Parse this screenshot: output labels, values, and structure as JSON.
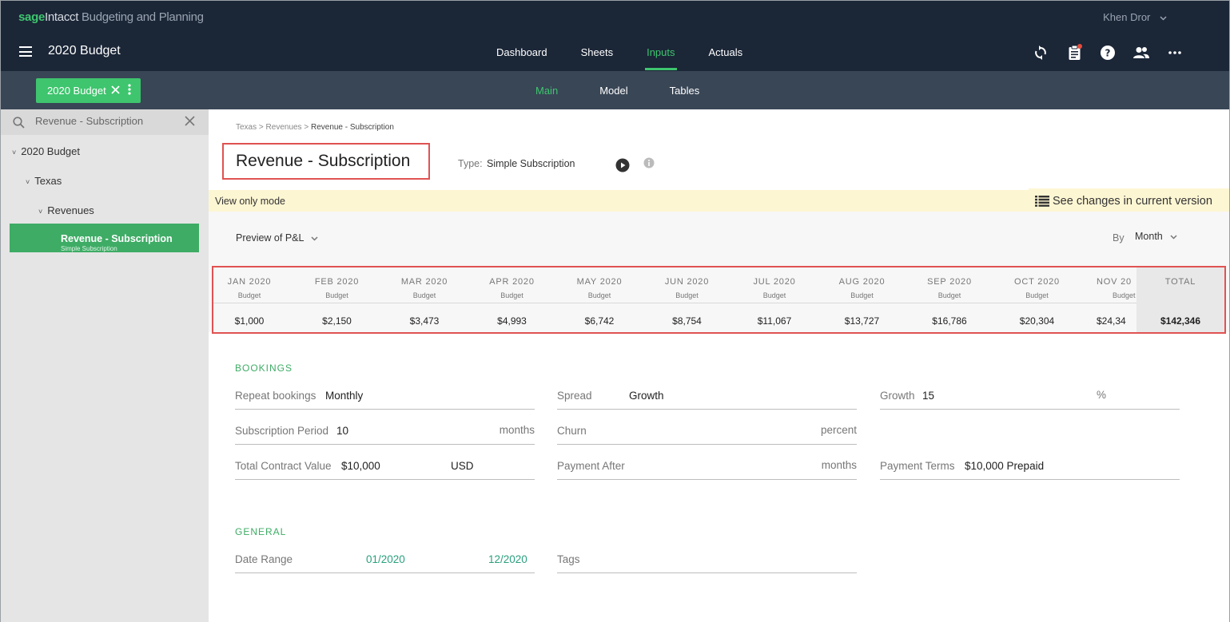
{
  "brand": {
    "sage": "sage",
    "intacct": "Intacct",
    "product": "Budgeting and Planning"
  },
  "user": {
    "name": "Khen Dror"
  },
  "header": {
    "budget_title": "2020 Budget"
  },
  "main_nav": [
    {
      "label": "Dashboard"
    },
    {
      "label": "Sheets"
    },
    {
      "label": "Inputs"
    },
    {
      "label": "Actuals"
    }
  ],
  "active_main_nav": "Inputs",
  "budget_chip": {
    "label": "2020 Budget"
  },
  "sub_nav": [
    {
      "label": "Main"
    },
    {
      "label": "Model"
    },
    {
      "label": "Tables"
    }
  ],
  "sidebar": {
    "search_value": "Revenue - Subscription",
    "tree": [
      {
        "label": "2020 Budget"
      },
      {
        "label": "Texas"
      },
      {
        "label": "Revenues"
      }
    ],
    "selected": {
      "label": "Revenue - Subscription",
      "sub": "Simple Subscription"
    }
  },
  "breadcrumb": {
    "p1": "Texas",
    "sep": ">",
    "p2": "Revenues",
    "current": "Revenue - Subscription"
  },
  "page_title": "Revenue - Subscription",
  "type": {
    "label": "Type:",
    "value": "Simple Subscription"
  },
  "view_mode": "View only mode",
  "see_changes": "See changes in current version",
  "preview": {
    "label": "Preview of P&L",
    "by_label": "By",
    "by_value": "Month"
  },
  "months": [
    {
      "label": "JAN 2020",
      "sub": "Budget",
      "value": "$1,000"
    },
    {
      "label": "FEB 2020",
      "sub": "Budget",
      "value": "$2,150"
    },
    {
      "label": "MAR 2020",
      "sub": "Budget",
      "value": "$3,473"
    },
    {
      "label": "APR 2020",
      "sub": "Budget",
      "value": "$4,993"
    },
    {
      "label": "MAY 2020",
      "sub": "Budget",
      "value": "$6,742"
    },
    {
      "label": "JUN 2020",
      "sub": "Budget",
      "value": "$8,754"
    },
    {
      "label": "JUL 2020",
      "sub": "Budget",
      "value": "$11,067"
    },
    {
      "label": "AUG 2020",
      "sub": "Budget",
      "value": "$13,727"
    },
    {
      "label": "SEP 2020",
      "sub": "Budget",
      "value": "$16,786"
    },
    {
      "label": "OCT 2020",
      "sub": "Budget",
      "value": "$20,304"
    },
    {
      "label": "NOV 20",
      "sub": "Budget",
      "value": "$24,34"
    }
  ],
  "total": {
    "label": "TOTAL",
    "value": "$142,346"
  },
  "bookings": {
    "title": "BOOKINGS",
    "repeat_label": "Repeat bookings",
    "repeat_value": "Monthly",
    "spread_label": "Spread",
    "spread_value": "Growth",
    "growth_label": "Growth",
    "growth_value": "15",
    "growth_unit": "%",
    "subperiod_label": "Subscription Period",
    "subperiod_value": "10",
    "subperiod_unit": "months",
    "churn_label": "Churn",
    "churn_unit": "percent",
    "tcv_label": "Total Contract Value",
    "tcv_value": "$10,000",
    "tcv_unit": "USD",
    "payafter_label": "Payment After",
    "payafter_unit": "months",
    "terms_label": "Payment Terms",
    "terms_value": "$10,000 Prepaid"
  },
  "general": {
    "title": "GENERAL",
    "date_label": "Date Range",
    "date_start": "01/2020",
    "date_end": "12/2020",
    "tags_label": "Tags"
  },
  "colors": {
    "topbar": "#1b2637",
    "subbar": "#394656",
    "accent": "#3ec56e",
    "highlight": "#e05252"
  }
}
